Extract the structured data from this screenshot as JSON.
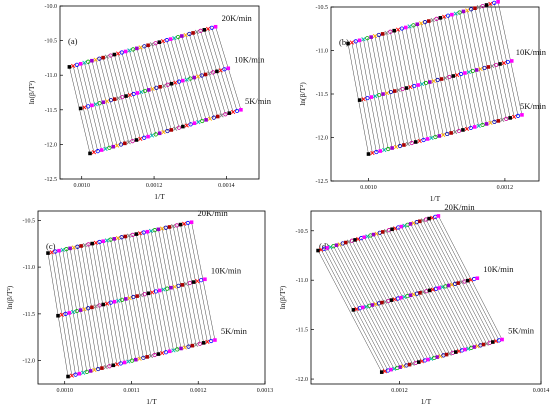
{
  "chart_data": [
    {
      "type": "line",
      "panel_label": "(a)",
      "xlabel": "1/T",
      "ylabel": "ln(β/T²)",
      "xlim": [
        0.00094,
        0.00149
      ],
      "ylim": [
        -12.5,
        -10.0
      ],
      "xticks": [
        0.001,
        0.0012,
        0.0014
      ],
      "xtick_labels": [
        "0.0010",
        "0.0012",
        "0.0014"
      ],
      "yticks": [
        -12.5,
        -12.0,
        -11.5,
        -11.0,
        -10.5,
        -10.0
      ],
      "ytick_labels": [
        "-12.5",
        "-12.0",
        "-11.5",
        "-11.0",
        "-10.5",
        "-10.0"
      ],
      "series": [
        {
          "name": "20K/min",
          "x_start": 0.000966,
          "x_end": 0.00137,
          "y_start": -10.88,
          "y_end": -10.3
        },
        {
          "name": "10K/min",
          "x_start": 0.000997,
          "x_end": 0.001405,
          "y_start": -11.48,
          "y_end": -10.9
        },
        {
          "name": "5K/min",
          "x_start": 0.001023,
          "x_end": 0.00144,
          "y_start": -12.13,
          "y_end": -11.5
        }
      ],
      "isoconversion_lines": 40
    },
    {
      "type": "line",
      "panel_label": "(b)",
      "xlabel": "1/T",
      "ylabel": "ln(β/T²)",
      "xlim": [
        0.000945,
        0.00125
      ],
      "ylim": [
        -12.5,
        -10.5
      ],
      "xticks": [
        0.001,
        0.0012
      ],
      "xtick_labels": [
        "0.0010",
        "0.0012"
      ],
      "yticks": [
        -12.5,
        -12.0,
        -11.5,
        -11.0,
        -10.5
      ],
      "ytick_labels": [
        "-12.5",
        "-12.0",
        "-11.5",
        "-11.0",
        "-10.5"
      ],
      "series": [
        {
          "name": "20K/min",
          "x_start": 0.00097,
          "x_end": 0.00119,
          "y_start": -10.92,
          "y_end": -10.44
        },
        {
          "name": "10K/min",
          "x_start": 0.000987,
          "x_end": 0.00121,
          "y_start": -11.57,
          "y_end": -11.12
        },
        {
          "name": "5K/min",
          "x_start": 0.001,
          "x_end": 0.001225,
          "y_start": -12.19,
          "y_end": -11.74
        }
      ],
      "isoconversion_lines": 40
    },
    {
      "type": "line",
      "panel_label": "(c)",
      "xlabel": "1/T",
      "ylabel": "ln(β/T²)",
      "xlim": [
        0.00096,
        0.0013
      ],
      "ylim": [
        -12.25,
        -10.4
      ],
      "xticks": [
        0.001,
        0.0011,
        0.0012,
        0.0013
      ],
      "xtick_labels": [
        "0.0010",
        "0.0011",
        "0.0012",
        "0.0013"
      ],
      "yticks": [
        -12.0,
        -11.5,
        -11.0,
        -10.5
      ],
      "ytick_labels": [
        "-12.0",
        "-11.5",
        "-11.0",
        "-10.5"
      ],
      "series": [
        {
          "name": "20K/min",
          "x_start": 0.000975,
          "x_end": 0.00119,
          "y_start": -10.85,
          "y_end": -10.52
        },
        {
          "name": "10K/min",
          "x_start": 0.00099,
          "x_end": 0.00121,
          "y_start": -11.52,
          "y_end": -11.13
        },
        {
          "name": "5K/min",
          "x_start": 0.001005,
          "x_end": 0.001225,
          "y_start": -12.17,
          "y_end": -11.78
        }
      ],
      "isoconversion_lines": 40
    },
    {
      "type": "line",
      "panel_label": "(d)",
      "xlabel": "1/T",
      "ylabel": "ln(β/T²)",
      "xlim": [
        0.001075,
        0.0014
      ],
      "ylim": [
        -12.05,
        -10.3
      ],
      "xticks": [
        0.0012,
        0.0014
      ],
      "xtick_labels": [
        "0.0012",
        "0.0014"
      ],
      "yticks": [
        -12.0,
        -11.5,
        -11.0,
        -10.5
      ],
      "ytick_labels": [
        "-12.0",
        "-11.5",
        "-11.0",
        "-10.5"
      ],
      "series": [
        {
          "name": "20K/min",
          "x_start": 0.001085,
          "x_end": 0.001255,
          "y_start": -10.7,
          "y_end": -10.35
        },
        {
          "name": "10K/min",
          "x_start": 0.001135,
          "x_end": 0.00131,
          "y_start": -11.3,
          "y_end": -10.98
        },
        {
          "name": "5K/min",
          "x_start": 0.001175,
          "x_end": 0.001345,
          "y_start": -11.93,
          "y_end": -11.6
        }
      ],
      "isoconversion_lines": 40
    }
  ],
  "marker_colors": [
    "#000000",
    "#ff0000",
    "#0000ff",
    "#ff00ff",
    "#00b0b0",
    "#00aa00",
    "#9900cc",
    "#ffaa00",
    "#0000aa",
    "#aa0000",
    "#808080",
    "#cc0099"
  ]
}
